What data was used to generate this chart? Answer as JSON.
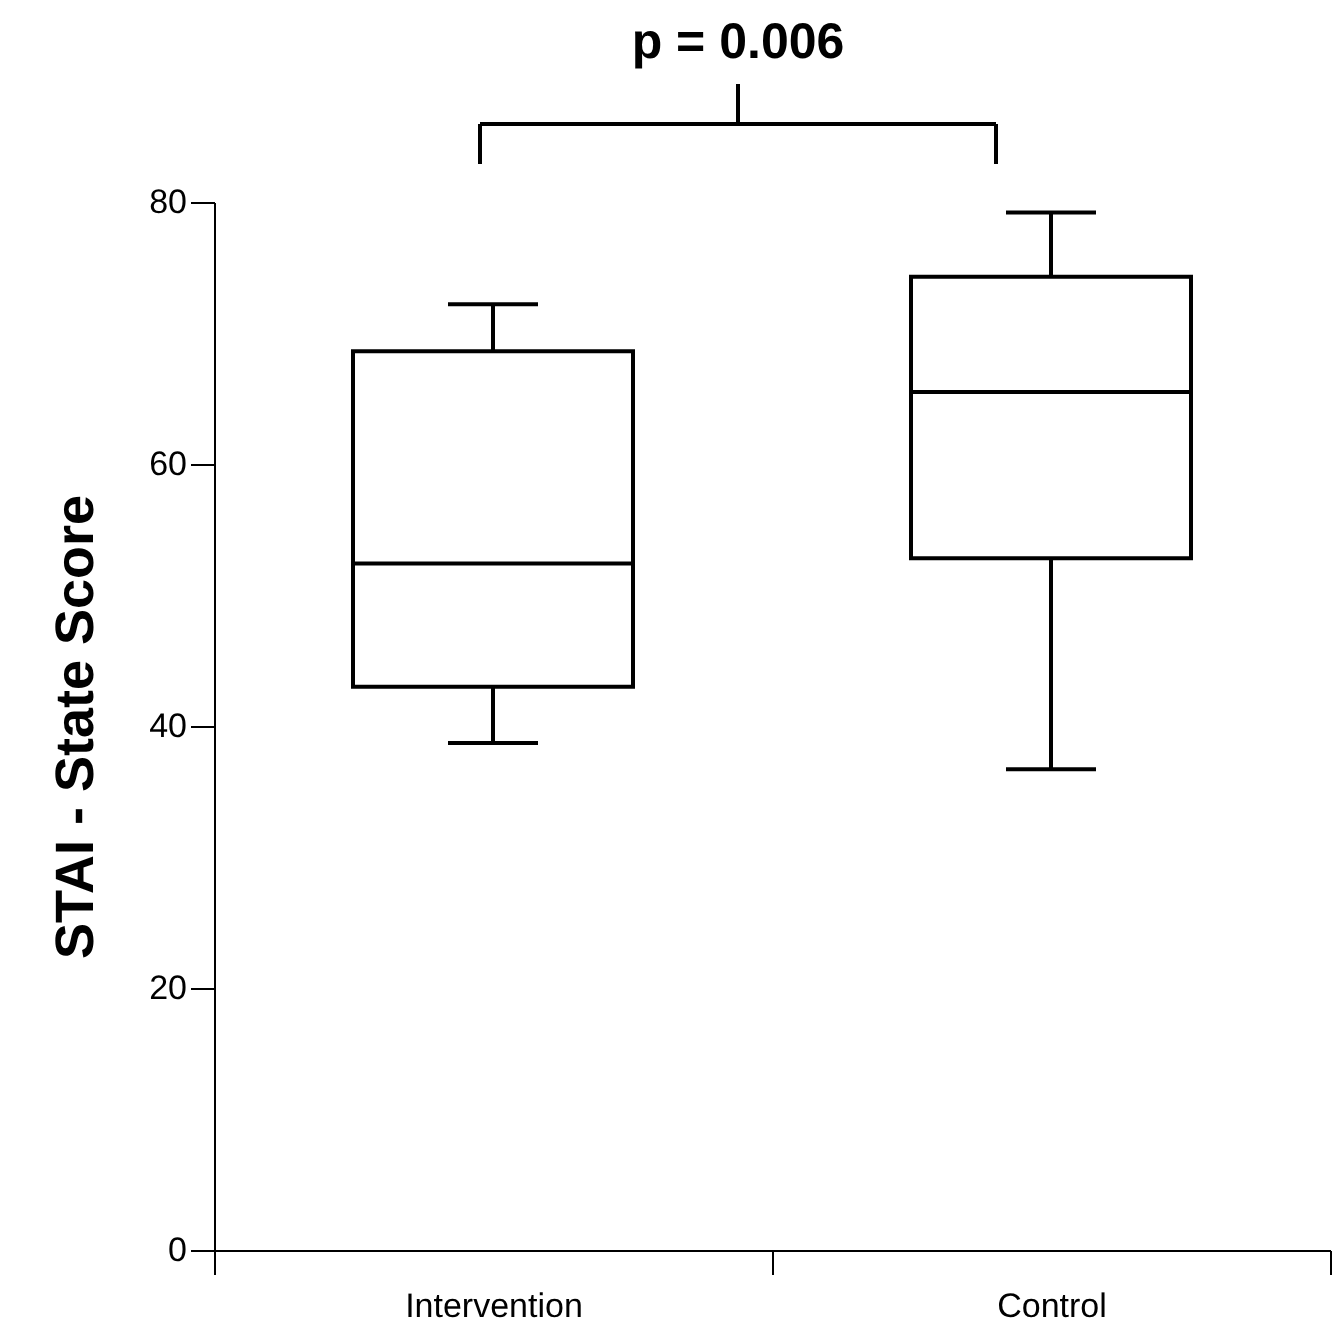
{
  "chart_data": {
    "type": "box",
    "ylabel": "STAI - State Score",
    "categories": [
      "Intervention",
      "Control"
    ],
    "boxes": [
      {
        "low": 38.7,
        "q1": 43.0,
        "median": 52.4,
        "q3": 68.6,
        "high": 72.2
      },
      {
        "low": 36.7,
        "q1": 52.8,
        "median": 65.5,
        "q3": 74.3,
        "high": 79.2
      }
    ],
    "ylim": [
      0,
      80
    ],
    "yticks": [
      0,
      20,
      40,
      60,
      80
    ],
    "grid": false,
    "annotations": [
      "p = 0.006"
    ]
  }
}
